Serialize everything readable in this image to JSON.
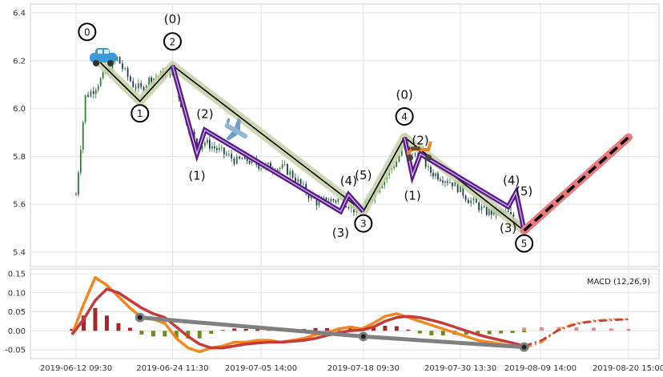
{
  "chart_data": [
    {
      "type": "candlestick",
      "panel": "price",
      "ylim": [
        5.37,
        6.43
      ],
      "yticks": [
        "6.4",
        "6.2",
        "6.0",
        "5.8",
        "5.6",
        "5.4"
      ],
      "ytick_values": [
        6.4,
        6.2,
        6.0,
        5.8,
        5.6,
        5.4
      ],
      "price_series": {
        "name": "",
        "x": [
          "2019-06-12 09:30",
          "2019-06-13 13:30",
          "2019-06-14 14:00",
          "2019-06-17 13:00",
          "2019-06-18 13:00",
          "2019-06-19 13:00",
          "2019-06-20 13:00",
          "2019-06-21 13:00",
          "2019-06-24 11:30",
          "2019-06-25 13:00",
          "2019-06-26 13:00",
          "2019-06-27 13:00",
          "2019-06-28 13:00",
          "2019-07-01 13:00",
          "2019-07-02 13:00",
          "2019-07-03 13:00",
          "2019-07-05 14:00",
          "2019-07-08 13:00",
          "2019-07-09 13:00",
          "2019-07-10 13:00",
          "2019-07-11 13:00",
          "2019-07-12 13:00",
          "2019-07-15 13:00",
          "2019-07-16 13:00",
          "2019-07-17 13:00",
          "2019-07-18 09:30",
          "2019-07-19 13:00",
          "2019-07-22 13:00",
          "2019-07-23 13:00",
          "2019-07-24 13:00",
          "2019-07-25 13:00",
          "2019-07-26 13:00",
          "2019-07-29 13:00",
          "2019-07-30 13:30",
          "2019-07-31 13:00",
          "2019-08-01 13:00",
          "2019-08-02 13:00",
          "2019-08-05 13:00",
          "2019-08-06 13:00",
          "2019-08-07 13:00"
        ],
        "values": [
          5.64,
          6.05,
          6.08,
          6.21,
          6.15,
          6.1,
          6.08,
          6.12,
          6.16,
          6.02,
          5.92,
          5.84,
          5.86,
          5.8,
          5.78,
          5.79,
          5.76,
          5.75,
          5.72,
          5.68,
          5.64,
          5.61,
          5.62,
          5.6,
          5.57,
          5.58,
          5.64,
          5.78,
          5.85,
          5.8,
          5.82,
          5.74,
          5.69,
          5.66,
          5.62,
          5.6,
          5.57,
          5.56,
          5.52,
          5.49
        ]
      },
      "wave_primary": {
        "x": [
          "2019-06-14 14:00",
          "2019-06-20 09:30",
          "2019-06-24 11:30",
          "2019-07-18 09:30",
          "2019-07-23 13:00",
          "2019-08-07 13:00"
        ],
        "y": [
          6.22,
          6.03,
          6.18,
          5.57,
          5.88,
          5.49
        ],
        "labels": [
          "0",
          "1",
          "2",
          "3",
          "4",
          "5"
        ]
      },
      "wave_sub_a": {
        "x": [
          "2019-06-24 11:30",
          "2019-06-27 13:00",
          "2019-06-28 13:00",
          "2019-07-15 13:00",
          "2019-07-16 13:00",
          "2019-07-18 09:30"
        ],
        "y": [
          6.18,
          5.81,
          5.91,
          5.57,
          5.64,
          5.57
        ],
        "labels": [
          "(0)",
          "(1)",
          "(2)",
          "(3)",
          "(4)",
          "(5)"
        ]
      },
      "wave_sub_b": {
        "x": [
          "2019-07-23 13:00",
          "2019-07-24 13:00",
          "2019-07-25 13:00",
          "2019-08-05 13:00",
          "2019-08-06 13:00",
          "2019-08-07 13:00"
        ],
        "y": [
          5.88,
          5.72,
          5.81,
          5.59,
          5.65,
          5.49
        ],
        "labels": [
          "(0)",
          "(1)",
          "(2)",
          "(3)",
          "(4)",
          "(5)"
        ]
      },
      "projection": {
        "x": [
          "2019-08-07 13:00",
          "2019-08-20 15:00"
        ],
        "y": [
          5.49,
          5.88
        ]
      },
      "icons": [
        "car-emoji",
        "airplane-emoji",
        "scooter-emoji"
      ]
    },
    {
      "type": "bar+line",
      "panel": "macd",
      "ylim": [
        -0.065,
        0.16
      ],
      "yticks": [
        "0.15",
        "0.10",
        "0.05",
        "0.00",
        "-0.05"
      ],
      "ytick_values": [
        0.15,
        0.1,
        0.05,
        0.0,
        -0.05
      ],
      "legend": "MACD (12,26,9)",
      "legend_position": "top-right",
      "macd_line": [
        -0.01,
        0.07,
        0.14,
        0.12,
        0.09,
        0.06,
        0.035,
        0.03,
        0.02,
        -0.02,
        -0.045,
        -0.055,
        -0.045,
        -0.04,
        -0.03,
        -0.03,
        -0.025,
        -0.025,
        -0.03,
        -0.025,
        -0.02,
        -0.01,
        -0.005,
        0.005,
        0.01,
        0.005,
        0.02,
        0.038,
        0.045,
        0.035,
        0.025,
        0.015,
        0.005,
        -0.005,
        -0.015,
        -0.025,
        -0.03,
        -0.035,
        -0.04,
        -0.045
      ],
      "signal_line": [
        -0.01,
        0.03,
        0.08,
        0.11,
        0.1,
        0.08,
        0.06,
        0.045,
        0.035,
        0.01,
        -0.015,
        -0.035,
        -0.045,
        -0.045,
        -0.04,
        -0.035,
        -0.032,
        -0.03,
        -0.03,
        -0.028,
        -0.025,
        -0.02,
        -0.012,
        -0.005,
        0.0,
        0.002,
        0.01,
        0.025,
        0.035,
        0.038,
        0.035,
        0.028,
        0.02,
        0.01,
        0.0,
        -0.01,
        -0.018,
        -0.025,
        -0.032,
        -0.04
      ],
      "histogram": [
        0.005,
        0.04,
        0.06,
        0.04,
        0.02,
        0.008,
        -0.01,
        -0.015,
        -0.015,
        -0.02,
        -0.02,
        -0.02,
        -0.008,
        0.002,
        0.006,
        0.005,
        0.005,
        0.004,
        0.0,
        0.003,
        0.005,
        0.007,
        0.007,
        0.008,
        0.008,
        0.004,
        0.01,
        0.013,
        0.012,
        0.003,
        -0.007,
        -0.012,
        -0.012,
        -0.01,
        -0.01,
        -0.01,
        -0.009,
        -0.007,
        -0.006,
        -0.004
      ],
      "projection_macd": [
        -0.045,
        -0.03,
        0.005,
        0.02,
        0.027,
        0.03,
        0.031
      ],
      "projection_signal": [
        -0.04,
        -0.025,
        0.002,
        0.018,
        0.025,
        0.028,
        0.03
      ],
      "projection_histogram": [
        0.008,
        0.009,
        0.01,
        0.009,
        0.008,
        0.006,
        0.005
      ],
      "divergence_points": {
        "x": [
          "2019-06-20 09:30",
          "2019-07-18 09:30",
          "2019-08-07 13:00"
        ],
        "y": [
          0.035,
          -0.015,
          -0.043
        ]
      }
    }
  ],
  "xticks": [
    "2019-06-12 09:30",
    "2019-06-24 11:30",
    "2019-07-05 14:00",
    "2019-07-18 09:30",
    "2019-07-30 13:30",
    "2019-08-09 14:00",
    "2019-08-20 15:00"
  ],
  "colors": {
    "up": "#2e7d32",
    "down": "#1f3a5f",
    "wave_primary": "#000000",
    "wave_primary_glow": "#c5d1a5",
    "wave_sub": "#5b1a8e",
    "projection_glow": "#e87c7c",
    "projection": "#000000",
    "macd": "#f5871f",
    "signal": "#c73a3a",
    "hist_pos": "#a3282a",
    "hist_neg": "#6f8e16",
    "hist_proj": "#d8908f",
    "divergence": "#808080"
  }
}
